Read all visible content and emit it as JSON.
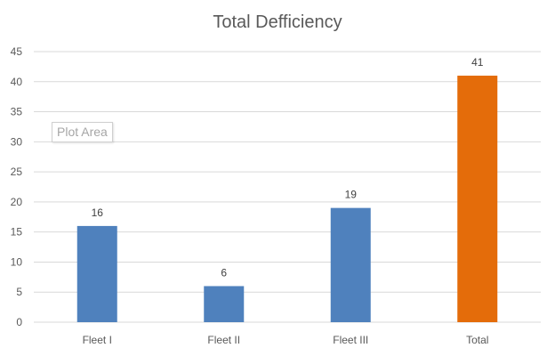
{
  "chart_data": {
    "type": "bar",
    "title": "Total Defficiency",
    "categories": [
      "Fleet I",
      "Fleet II",
      "Fleet III",
      "Total"
    ],
    "values": [
      16,
      6,
      19,
      41
    ],
    "data_labels": [
      "16",
      "6",
      "19",
      "41"
    ],
    "bar_colors": [
      "#4f81bd",
      "#4f81bd",
      "#4f81bd",
      "#e46c0a"
    ],
    "ylim": [
      0,
      45
    ],
    "yticks": [
      0,
      5,
      10,
      15,
      20,
      25,
      30,
      35,
      40,
      45
    ],
    "ytick_labels": [
      "0",
      "5",
      "10",
      "15",
      "20",
      "25",
      "30",
      "35",
      "40",
      "45"
    ],
    "grid": true,
    "legend": "none"
  },
  "tooltip": {
    "text": "Plot Area"
  }
}
